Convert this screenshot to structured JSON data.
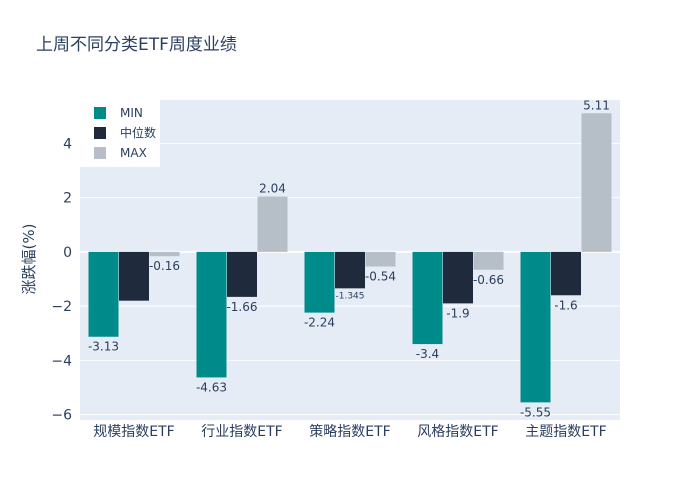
{
  "chart_data": {
    "type": "bar",
    "title": "上周不同分类ETF周度业绩",
    "xlabel": "",
    "ylabel": "涨跌幅(%)",
    "categories": [
      "规模指数ETF",
      "行业指数ETF",
      "策略指数ETF",
      "风格指数ETF",
      "主题指数ETF"
    ],
    "series": [
      {
        "name": "MIN",
        "values": [
          -3.13,
          -4.63,
          -2.24,
          -3.4,
          -5.55
        ],
        "labels": [
          "-3.13",
          "-4.63",
          "-2.24",
          "-3.4",
          "-5.55"
        ]
      },
      {
        "name": "中位数",
        "values": [
          -1.8,
          -1.66,
          -1.345,
          -1.9,
          -1.6
        ],
        "labels": [
          "",
          "-1.66",
          "-1.345",
          "-1.9",
          "-1.6"
        ]
      },
      {
        "name": "MAX",
        "values": [
          -0.16,
          2.04,
          -0.54,
          -0.66,
          5.11
        ],
        "labels": [
          "-0.16",
          "2.04",
          "-0.54",
          "-0.66",
          "5.11"
        ]
      }
    ],
    "ylim": [
      -6.2,
      5.6
    ],
    "yticks": [
      "−6",
      "−4",
      "−2",
      "0",
      "2",
      "4"
    ],
    "ytick_values": [
      -6,
      -4,
      -2,
      0,
      2,
      4
    ],
    "grid": true,
    "legend_position": "top-left",
    "colors": {
      "MIN": "#008b8b",
      "中位数": "#1f2a3d",
      "MAX": "#b6bec8",
      "plot_bg": "#e5ecf6",
      "grid": "#ffffff"
    }
  }
}
